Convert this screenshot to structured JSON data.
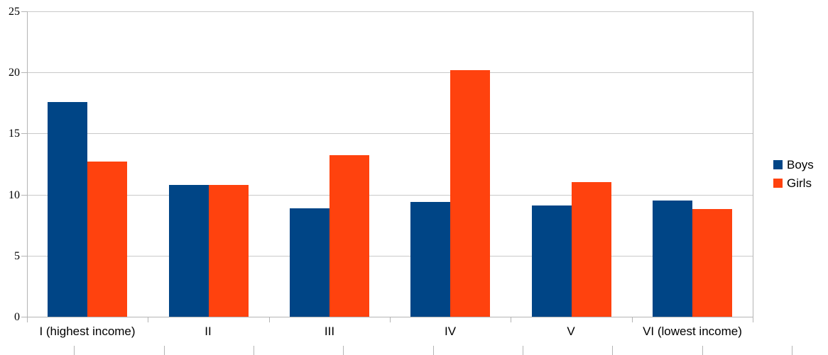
{
  "chart_data": {
    "type": "bar",
    "title": "",
    "xlabel": "",
    "ylabel": "",
    "categories": [
      "I (highest income)",
      "II",
      "III",
      "IV",
      "V",
      "VI (lowest income)"
    ],
    "series": [
      {
        "name": "Boys",
        "color": "#004586",
        "values": [
          17.6,
          10.8,
          8.9,
          9.4,
          9.1,
          9.5
        ]
      },
      {
        "name": "Girls",
        "color": "#FF420E",
        "values": [
          12.7,
          10.8,
          13.2,
          20.2,
          11.0,
          8.8
        ]
      }
    ],
    "ylim": [
      0,
      25
    ],
    "y_ticks": [
      0,
      5,
      10,
      15,
      20,
      25
    ],
    "grid": true,
    "legend_position": "right"
  },
  "legend": {
    "items": [
      {
        "label": "Boys",
        "color": "#004586",
        "swatch_icon": "square-swatch-icon"
      },
      {
        "label": "Girls",
        "color": "#FF420E",
        "swatch_icon": "square-swatch-icon"
      }
    ]
  },
  "colors": {
    "background": "#ffffff",
    "gridline": "#c9c9c9",
    "axis": "#b4b4b4",
    "text": "#000000"
  }
}
